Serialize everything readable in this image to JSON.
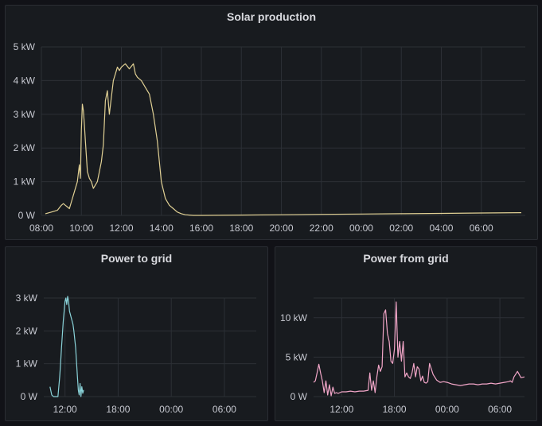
{
  "panels": {
    "solar": {
      "title": "Solar production"
    },
    "to_grid": {
      "title": "Power to grid"
    },
    "from_grid": {
      "title": "Power from grid"
    }
  },
  "colors": {
    "solar": "#e0d094",
    "to_grid": "#8ad3d9",
    "from_grid": "#f2a6c8",
    "grid": "#2c3036"
  },
  "chart_data": [
    {
      "type": "line",
      "title": "Solar production",
      "xlabel": "",
      "ylabel": "",
      "x_tick_labels": [
        "08:00",
        "10:00",
        "12:00",
        "14:00",
        "16:00",
        "18:00",
        "20:00",
        "22:00",
        "00:00",
        "02:00",
        "04:00",
        "06:00"
      ],
      "y_tick_labels": [
        "0 W",
        "1 kW",
        "2 kW",
        "3 kW",
        "4 kW",
        "5 kW"
      ],
      "x_unit": "hours since 08:00",
      "xlim": [
        0,
        24.2
      ],
      "ylim": [
        0,
        5
      ],
      "grid": true,
      "series": [
        {
          "x": [
            0.2,
            0.5,
            0.8,
            1.0,
            1.1,
            1.2,
            1.3,
            1.4,
            1.5,
            1.7,
            1.8,
            1.9,
            1.95,
            2.0,
            2.05,
            2.1,
            2.15,
            2.2,
            2.3,
            2.4,
            2.5,
            2.6,
            2.7,
            2.8,
            2.9,
            3.0,
            3.1,
            3.2,
            3.3,
            3.4,
            3.5,
            3.6,
            3.7,
            3.8,
            3.9,
            4.0,
            4.2,
            4.4,
            4.6,
            4.7,
            4.8,
            5.0,
            5.2,
            5.4,
            5.6,
            5.8,
            6.0,
            6.2,
            6.4,
            6.6,
            6.8,
            7.0,
            7.2,
            7.4,
            7.6,
            7.8,
            8.0,
            10,
            12,
            14,
            16,
            18,
            20,
            22,
            24
          ],
          "y": [
            0.05,
            0.1,
            0.15,
            0.3,
            0.35,
            0.3,
            0.25,
            0.2,
            0.4,
            0.8,
            1.0,
            1.5,
            1.1,
            2.5,
            3.3,
            3.1,
            2.7,
            2.2,
            1.3,
            1.1,
            1.0,
            0.8,
            0.9,
            1.0,
            1.3,
            1.6,
            2.1,
            3.4,
            3.7,
            3.0,
            3.5,
            4.0,
            4.2,
            4.4,
            4.3,
            4.4,
            4.5,
            4.35,
            4.5,
            4.2,
            4.1,
            4.0,
            3.8,
            3.6,
            3.0,
            2.2,
            1.0,
            0.5,
            0.3,
            0.2,
            0.1,
            0.05,
            0.02,
            0.01,
            0.0,
            0.0,
            0.0,
            0.01,
            0.02,
            0.03,
            0.04,
            0.05,
            0.06,
            0.07,
            0.08
          ]
        }
      ]
    },
    {
      "type": "line",
      "title": "Power to grid",
      "xlabel": "",
      "ylabel": "",
      "x_tick_labels": [
        "12:00",
        "18:00",
        "00:00",
        "06:00"
      ],
      "y_tick_labels": [
        "0 W",
        "1 kW",
        "2 kW",
        "3 kW"
      ],
      "x_unit": "hours since 08:00",
      "xlim": [
        1.6,
        25.6
      ],
      "ylim": [
        0,
        3
      ],
      "grid": true,
      "series": [
        {
          "x": [
            2.3,
            2.5,
            2.7,
            3.0,
            3.2,
            3.4,
            3.5,
            3.6,
            3.7,
            3.8,
            3.9,
            4.0,
            4.1,
            4.2,
            4.3,
            4.4,
            4.5,
            4.6,
            4.7,
            4.8,
            4.9,
            5.0,
            5.2,
            5.4,
            5.5,
            5.6,
            5.7,
            5.8,
            5.9,
            6.0,
            6.1
          ],
          "y": [
            0.3,
            0.05,
            0.0,
            0.0,
            0.0,
            0.6,
            1.0,
            1.5,
            1.9,
            2.3,
            2.6,
            2.9,
            3.0,
            2.8,
            3.05,
            2.9,
            2.6,
            2.5,
            2.4,
            2.3,
            2.2,
            2.0,
            1.5,
            0.6,
            0.2,
            0.05,
            0.4,
            0.0,
            0.3,
            0.1,
            0.2
          ]
        }
      ]
    },
    {
      "type": "line",
      "title": "Power from grid",
      "xlabel": "",
      "ylabel": "",
      "x_tick_labels": [
        "12:00",
        "18:00",
        "00:00",
        "06:00"
      ],
      "y_tick_labels": [
        "0 W",
        "5 kW",
        "10 kW"
      ],
      "x_unit": "hours since 08:00",
      "xlim": [
        0.8,
        24.8
      ],
      "ylim": [
        0,
        12.5
      ],
      "grid": true,
      "series": [
        {
          "x": [
            0.8,
            1.0,
            1.2,
            1.4,
            1.6,
            1.8,
            2.0,
            2.2,
            2.4,
            2.6,
            2.8,
            3.0,
            3.2,
            3.4,
            3.6,
            3.8,
            4.0,
            4.5,
            5.0,
            5.5,
            6.0,
            6.5,
            7.0,
            7.2,
            7.4,
            7.6,
            7.8,
            8.0,
            8.2,
            8.4,
            8.6,
            8.8,
            9.0,
            9.2,
            9.4,
            9.6,
            9.8,
            10.0,
            10.2,
            10.4,
            10.6,
            10.8,
            11.0,
            11.2,
            11.4,
            11.6,
            11.8,
            12.0,
            12.2,
            12.4,
            12.6,
            12.8,
            13.0,
            13.2,
            13.4,
            13.6,
            13.8,
            14.0,
            14.4,
            14.8,
            15.2,
            15.6,
            16.0,
            16.5,
            17.0,
            17.5,
            18.0,
            18.5,
            19.0,
            19.5,
            20.0,
            20.5,
            21.0,
            21.5,
            22.0,
            22.5,
            23.0,
            23.2,
            23.4,
            23.6,
            24.0,
            24.4,
            24.8
          ],
          "y": [
            1.8,
            2.0,
            3.0,
            4.1,
            3.0,
            2.0,
            0.5,
            2.0,
            0.2,
            1.5,
            0.1,
            1.2,
            0.4,
            0.5,
            0.4,
            0.5,
            0.6,
            0.6,
            0.7,
            0.6,
            0.7,
            0.7,
            0.8,
            3.0,
            0.8,
            2.0,
            0.5,
            2.5,
            4.0,
            3.2,
            3.8,
            10.5,
            11.0,
            8.0,
            7.0,
            4.5,
            4.2,
            6.0,
            12.0,
            5.0,
            7.0,
            4.5,
            7.0,
            2.5,
            3.0,
            2.5,
            2.3,
            3.0,
            4.2,
            2.5,
            3.8,
            3.5,
            2.0,
            2.6,
            1.8,
            1.7,
            1.9,
            4.2,
            2.8,
            2.1,
            1.8,
            1.9,
            1.8,
            1.6,
            1.5,
            1.4,
            1.5,
            1.6,
            1.6,
            1.5,
            1.6,
            1.6,
            1.7,
            1.6,
            1.7,
            1.8,
            1.9,
            2.0,
            1.8,
            2.5,
            3.2,
            2.4,
            2.5
          ]
        }
      ]
    }
  ]
}
